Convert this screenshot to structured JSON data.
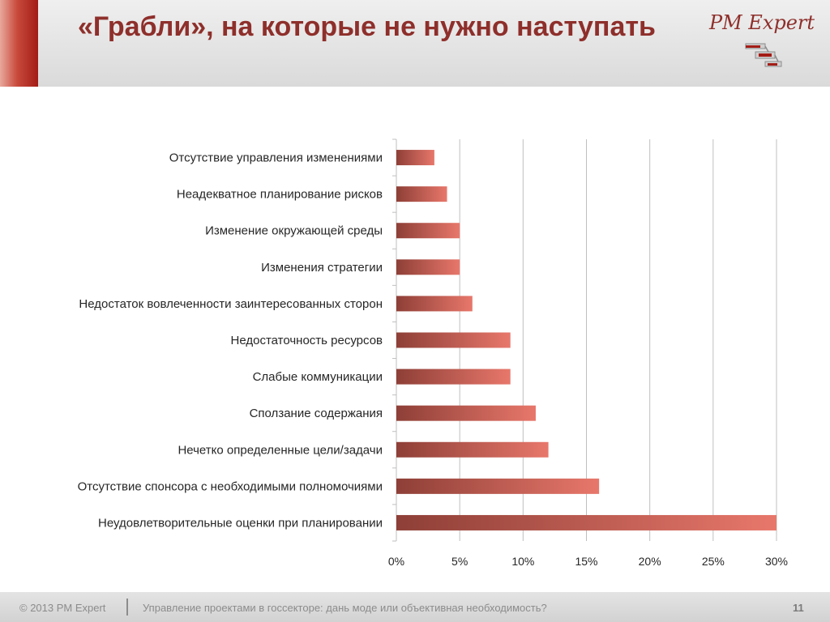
{
  "slide": {
    "title": "«Грабли», на которые не нужно наступать",
    "logo": "PM Expert",
    "footer": {
      "copyright": "© 2013 PM Expert",
      "subtitle": "Управление проектами в госсекторе: дань моде или объективная необходимость?",
      "page_number": "11"
    }
  },
  "colors": {
    "accent": "#8e2f2b",
    "bar_dark": "#8e3f37",
    "bar_light": "#e8776b",
    "grid": "#bfbfbf",
    "label": "#262626"
  },
  "chart_data": {
    "type": "bar",
    "orientation": "horizontal",
    "title": "",
    "xlabel": "",
    "ylabel": "",
    "xlim": [
      0,
      30
    ],
    "x_ticks": [
      "0%",
      "5%",
      "10%",
      "15%",
      "20%",
      "25%",
      "30%"
    ],
    "grid": "vertical",
    "categories": [
      "Отсутствие управления изменениями",
      "Неадекватное планирование рисков",
      "Изменение окружающей среды",
      "Изменения стратегии",
      "Недостаток вовлеченности заинтересованных сторон",
      "Недостаточность ресурсов",
      "Слабые коммуникации",
      "Сползание содержания",
      "Нечетко определенные цели/задачи",
      "Отсутствие спонсора с необходимыми полномочиями",
      "Неудовлетворительные оценки при планировании"
    ],
    "values": [
      3,
      4,
      5,
      5,
      6,
      9,
      9,
      11,
      12,
      16,
      30
    ]
  }
}
